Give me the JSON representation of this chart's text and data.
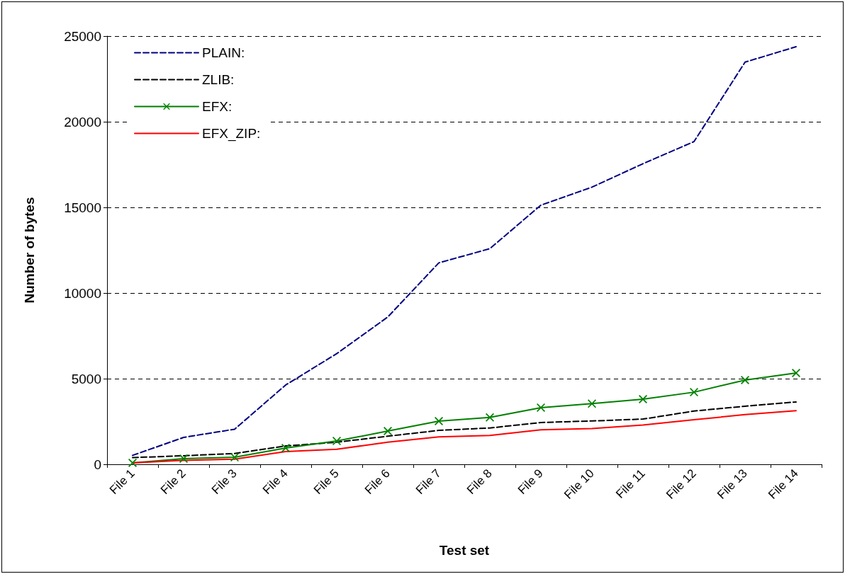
{
  "chart_data": {
    "type": "line",
    "xlabel": "Test set",
    "ylabel": "Number of bytes",
    "categories": [
      "File 1",
      "File 2",
      "File 3",
      "File 4",
      "File 5",
      "File 6",
      "File 7",
      "File 8",
      "File 9",
      "File 10",
      "File 11",
      "File 12",
      "File 13",
      "File 14"
    ],
    "series": [
      {
        "name": "PLAIN:",
        "color": "#000080",
        "line_style": "dashed",
        "marker": "none",
        "values": [
          520,
          1570,
          2050,
          4630,
          6460,
          8600,
          11760,
          12590,
          15130,
          16180,
          17550,
          18840,
          23480,
          24380
        ]
      },
      {
        "name": "ZLIB:",
        "color": "#000000",
        "line_style": "dashed",
        "marker": "none",
        "values": [
          390,
          500,
          630,
          1070,
          1290,
          1640,
          1980,
          2120,
          2440,
          2530,
          2640,
          3110,
          3390,
          3640
        ]
      },
      {
        "name": "EFX:",
        "color": "#008000",
        "line_style": "solid",
        "marker": "cross",
        "values": [
          80,
          330,
          410,
          950,
          1360,
          1940,
          2520,
          2740,
          3310,
          3540,
          3800,
          4210,
          4920,
          5330
        ]
      },
      {
        "name": "EFX_ZIP:",
        "color": "#ff0000",
        "line_style": "solid",
        "marker": "none",
        "values": [
          80,
          230,
          300,
          740,
          880,
          1290,
          1600,
          1680,
          2010,
          2090,
          2290,
          2600,
          2900,
          3130
        ]
      }
    ],
    "ylim": [
      0,
      25000
    ],
    "yticks": [
      0,
      5000,
      10000,
      15000,
      20000,
      25000
    ],
    "grid": "y",
    "legend": "top left"
  }
}
